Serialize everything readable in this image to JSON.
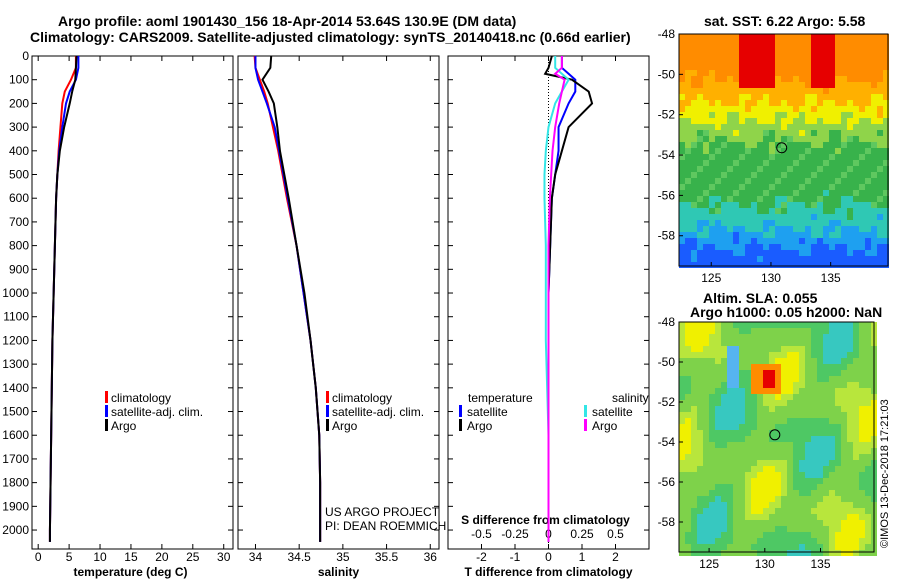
{
  "header": {
    "title_line1": "Argo profile: aoml 1901430_156 18-Apr-2014 53.64S 130.9E (DM data)",
    "title_line2": "Climatology: CARS2009. Satellite-adjusted climatology: synTS_20140418.nc (0.66d earlier)"
  },
  "maps": {
    "sst_title": "sat. SST: 6.22 Argo: 5.58",
    "sla_title_line1": "Altim. SLA: 0.055",
    "sla_title_line2": "Argo h1000: 0.05 h2000: NaN",
    "lat_ticks": [
      "-48",
      "-50",
      "-52",
      "-54",
      "-56",
      "-58"
    ],
    "lon_ticks": [
      "125",
      "130",
      "135"
    ],
    "float_position": {
      "lon": 130.9,
      "lat": -53.64
    }
  },
  "credits": {
    "line1": "US ARGO PROJECT",
    "line2": "PI: DEAN ROEMMICH",
    "stamp": "©IMOS 13-Dec-2018 17:21:03"
  },
  "colors": {
    "climatology": "#ff0000",
    "satellite": "#0000ff",
    "argo": "#000000",
    "sal_satellite": "#33e6e6",
    "sal_argo": "#ff00ff"
  },
  "chart_data": [
    {
      "type": "line",
      "xlabel": "temperature (deg C)",
      "xlim": [
        -1,
        31.5
      ],
      "ylim": [
        2080,
        0
      ],
      "xticks": [
        "0",
        "5",
        "10",
        "15",
        "20",
        "25",
        "30"
      ],
      "yticks": [
        "0",
        "100",
        "200",
        "300",
        "400",
        "500",
        "600",
        "700",
        "800",
        "900",
        "1000",
        "1100",
        "1200",
        "1300",
        "1400",
        "1500",
        "1600",
        "1700",
        "1800",
        "1900",
        "2000"
      ],
      "legend": [
        "climatology",
        "satellite-adj. clim.",
        "Argo"
      ],
      "depth": [
        0,
        50,
        100,
        150,
        200,
        300,
        400,
        500,
        600,
        800,
        1000,
        1200,
        1400,
        1600,
        1800,
        2000,
        2050
      ],
      "series": [
        {
          "name": "climatology",
          "values": [
            6.1,
            6.1,
            5.3,
            4.3,
            3.9,
            3.6,
            3.3,
            3.1,
            2.9,
            2.7,
            2.5,
            2.3,
            2.2,
            2.1,
            2.0,
            1.9,
            1.9
          ]
        },
        {
          "name": "satellite-adj. clim.",
          "values": [
            6.5,
            6.5,
            6.1,
            5.1,
            4.5,
            3.9,
            3.4,
            3.1,
            2.9,
            2.7,
            2.5,
            2.3,
            2.2,
            2.1,
            2.0,
            1.9,
            1.9
          ]
        },
        {
          "name": "Argo",
          "values": [
            6.2,
            6.1,
            6.0,
            5.5,
            5.1,
            4.2,
            3.5,
            3.1,
            2.9,
            2.7,
            2.5,
            2.3,
            2.2,
            2.1,
            2.0,
            1.9,
            1.9
          ]
        }
      ]
    },
    {
      "type": "line",
      "xlabel": "salinity",
      "xlim": [
        33.8,
        36.1
      ],
      "ylim": [
        2080,
        0
      ],
      "xticks": [
        "34",
        "34.5",
        "35",
        "35.5",
        "36"
      ],
      "legend": [
        "climatology",
        "satellite-adj. clim.",
        "Argo"
      ],
      "depth": [
        0,
        50,
        100,
        150,
        200,
        300,
        400,
        500,
        600,
        800,
        1000,
        1200,
        1400,
        1600,
        1800,
        2000,
        2050
      ],
      "series": [
        {
          "name": "climatology",
          "values": [
            33.99,
            34.0,
            34.05,
            34.1,
            34.14,
            34.2,
            34.26,
            34.31,
            34.36,
            34.47,
            34.55,
            34.63,
            34.69,
            34.73,
            34.74,
            34.74,
            34.74
          ]
        },
        {
          "name": "satellite-adj. clim.",
          "values": [
            34.0,
            34.0,
            34.03,
            34.08,
            34.13,
            34.22,
            34.27,
            34.32,
            34.37,
            34.47,
            34.55,
            34.63,
            34.69,
            34.73,
            34.74,
            34.74,
            34.74
          ]
        },
        {
          "name": "Argo",
          "values": [
            34.18,
            34.17,
            34.08,
            34.15,
            34.21,
            34.25,
            34.28,
            34.33,
            34.38,
            34.47,
            34.56,
            34.63,
            34.69,
            34.73,
            34.74,
            34.74,
            34.74
          ]
        }
      ]
    },
    {
      "type": "line",
      "xlabel": "T difference from climatology",
      "xlabel_top": "S difference from climatology",
      "xlim": [
        -3,
        3
      ],
      "ylim": [
        2080,
        0
      ],
      "xticks": [
        "-2",
        "-1",
        "0",
        "1",
        "2"
      ],
      "xticks_top": [
        "-0.5",
        "-0.25",
        "0",
        "0.25",
        "0.5"
      ],
      "legend_temperature_title": "temperature",
      "legend_salinity_title": "salinity",
      "legend": [
        "satellite",
        "Argo",
        "satellite",
        "Argo"
      ],
      "depth": [
        0,
        50,
        75,
        100,
        150,
        200,
        300,
        400,
        500,
        600,
        800,
        1000,
        1200,
        1400,
        1600,
        1800,
        2000,
        2050
      ],
      "series": [
        {
          "name": "satellite",
          "values": [
            0.4,
            0.4,
            0.6,
            0.8,
            0.8,
            0.6,
            0.3,
            0.3,
            0.2,
            0.1,
            0.05,
            0.0,
            0.0,
            0.0,
            0.0,
            0.0,
            0.0,
            0.0
          ]
        },
        {
          "name": "Argo",
          "values": [
            0.1,
            0.0,
            -0.1,
            0.7,
            1.2,
            1.3,
            0.6,
            0.4,
            0.2,
            0.1,
            0.05,
            0.0,
            0.0,
            0.0,
            0.0,
            0.0,
            0.0,
            0.0
          ]
        },
        {
          "name": "satellite",
          "values": [
            0.05,
            0.05,
            0.1,
            0.15,
            0.1,
            0.05,
            0.0,
            -0.02,
            -0.03,
            -0.03,
            -0.02,
            -0.02,
            -0.02,
            -0.01,
            0.0,
            0.0,
            0.0,
            0.0
          ]
        },
        {
          "name": "Argo",
          "values": [
            0.1,
            0.1,
            0.05,
            0.12,
            0.1,
            0.08,
            0.05,
            0.03,
            0.02,
            0.01,
            0.0,
            0.0,
            0.0,
            0.0,
            0.0,
            0.0,
            0.0,
            0.0
          ]
        }
      ]
    }
  ]
}
